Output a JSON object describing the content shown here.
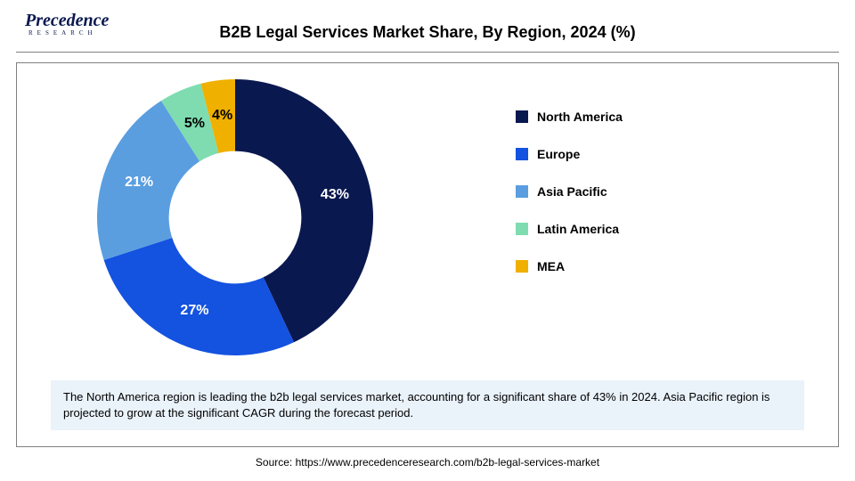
{
  "logo": {
    "text": "Precedence",
    "tagline": "RESEARCH"
  },
  "title": {
    "text": "B2B Legal Services Market Share, By Region, 2024 (%)",
    "fontsize": 18
  },
  "chart": {
    "type": "donut",
    "inner_radius_ratio": 0.48,
    "start_angle_deg": -90,
    "label_fontsize": 16,
    "slices": [
      {
        "name": "North America",
        "value": 43,
        "color": "#0a1850",
        "label": "43%"
      },
      {
        "name": "Europe",
        "value": 27,
        "color": "#1452e0",
        "label": "27%"
      },
      {
        "name": "Asia Pacific",
        "value": 21,
        "color": "#5a9ee0",
        "label": "21%"
      },
      {
        "name": "Latin America",
        "value": 5,
        "color": "#7edcb0",
        "label": "5%"
      },
      {
        "name": "MEA",
        "value": 4,
        "color": "#f0b000",
        "label": "4%"
      }
    ]
  },
  "legend": {
    "fontsize": 14,
    "items": [
      {
        "label": "North America",
        "color": "#0a1850"
      },
      {
        "label": "Europe",
        "color": "#1452e0"
      },
      {
        "label": "Asia Pacific",
        "color": "#5a9ee0"
      },
      {
        "label": "Latin America",
        "color": "#7edcb0"
      },
      {
        "label": "MEA",
        "color": "#f0b000"
      }
    ]
  },
  "caption": {
    "text": "The North America region is leading the b2b legal services market, accounting for a significant share of 43% in 2024. Asia Pacific region is projected to grow at the significant CAGR during the forecast period.",
    "fontsize": 13,
    "background": "#eaf2fa"
  },
  "source": {
    "text": "Source: https://www.precedenceresearch.com/b2b-legal-services-market",
    "fontsize": 12
  },
  "colors": {
    "background": "#ffffff",
    "rule": "#808080",
    "frame_border": "#808080",
    "title_color": "#000000"
  }
}
